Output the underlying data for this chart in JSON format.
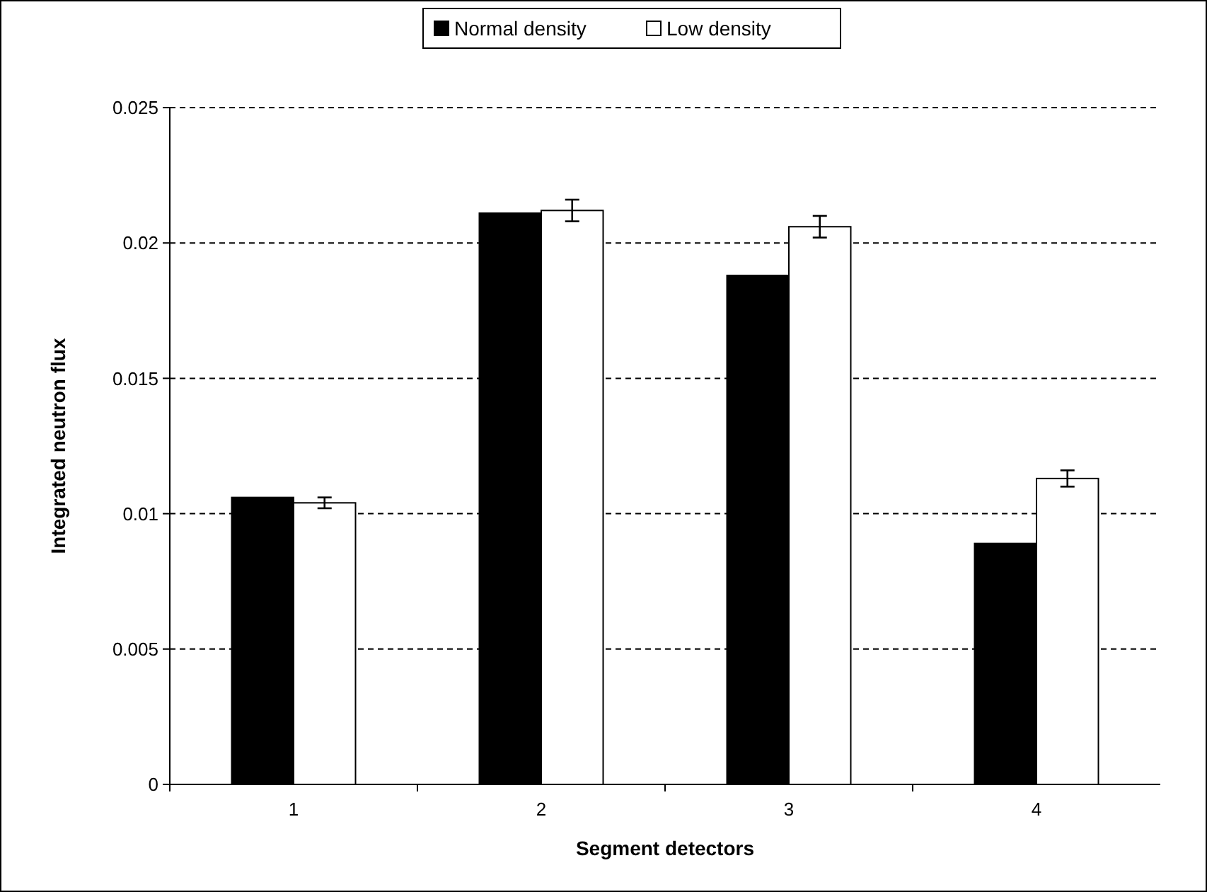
{
  "chart_data": {
    "type": "bar",
    "xlabel": "Segment detectors",
    "ylabel": "Integrated neutron  flux",
    "categories": [
      "1",
      "2",
      "3",
      "4"
    ],
    "series": [
      {
        "name": "Normal density",
        "color": "#000000",
        "values": [
          0.0106,
          0.0211,
          0.0188,
          0.0089
        ]
      },
      {
        "name": "Low density",
        "color": "#ffffff",
        "values": [
          0.0104,
          0.0212,
          0.0206,
          0.0113
        ],
        "errors": [
          0.0002,
          0.0004,
          0.0004,
          0.0003
        ]
      }
    ],
    "ylim": [
      0,
      0.025
    ],
    "yticks": [
      0,
      0.005,
      0.01,
      0.015,
      0.02,
      0.025
    ],
    "grid": "y",
    "legend": "top"
  }
}
